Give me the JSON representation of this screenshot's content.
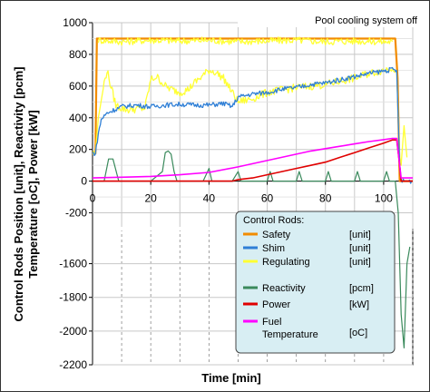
{
  "chart_data": {
    "type": "line",
    "annotation": "Pool cooling system off",
    "xlabel": "Time [min]",
    "ylabel_line1": "Control Rods Position [unit], Reactivity [pcm]",
    "ylabel_line2": "Temperature [oC], Power [kW]",
    "xlim": [
      0,
      110
    ],
    "x_ticks": [
      "0",
      "20",
      "40",
      "60",
      "80",
      "100"
    ],
    "y_ticks_upper": [
      "1000",
      "800",
      "600",
      "400",
      "200",
      "0",
      "-200"
    ],
    "y_ticks_lower": [
      "-1600",
      "-1800",
      "-2000",
      "-2200"
    ],
    "legend": {
      "group_title": "Control Rods:",
      "entries": [
        {
          "name": "Safety",
          "unit": "[unit]",
          "color": "#f28c00"
        },
        {
          "name": "Shim",
          "unit": "[unit]",
          "color": "#2f7fd6"
        },
        {
          "name": "Regulating",
          "unit": "[unit]",
          "color": "#ffff33"
        },
        {
          "name": "Reactivity",
          "unit": "[pcm]",
          "color": "#3a8a5c"
        },
        {
          "name": "Power",
          "unit": "[kW]",
          "color": "#e00000"
        },
        {
          "name": "Fuel",
          "name2": "Temperature",
          "unit": "[oC]",
          "color": "#ff00ff"
        }
      ]
    },
    "series": [
      {
        "name": "Safety",
        "color": "#f28c00",
        "x": [
          0,
          1,
          1.5,
          104,
          104.8,
          105.5,
          110
        ],
        "y": [
          175,
          175,
          900,
          900,
          650,
          0,
          0
        ]
      },
      {
        "name": "Shim",
        "color": "#2f7fd6",
        "x": [
          0,
          1,
          2,
          3,
          5,
          10,
          15,
          20,
          25,
          30,
          35,
          40,
          45,
          48,
          50,
          55,
          60,
          65,
          70,
          75,
          80,
          85,
          90,
          95,
          100,
          103,
          104.5,
          105.5,
          106,
          110
        ],
        "y": [
          175,
          175,
          300,
          390,
          430,
          470,
          480,
          470,
          480,
          485,
          480,
          480,
          490,
          470,
          530,
          550,
          560,
          580,
          590,
          610,
          620,
          640,
          660,
          680,
          695,
          705,
          700,
          100,
          0,
          0
        ]
      },
      {
        "name": "Regulating",
        "color": "#ffff33",
        "x": [
          0,
          1,
          2,
          4,
          5,
          6,
          8,
          10,
          12,
          18,
          20,
          22,
          25,
          27,
          30,
          33,
          35,
          40,
          42,
          45,
          48,
          50,
          55,
          60,
          70,
          80,
          90,
          95,
          100,
          103,
          104.5,
          105.5,
          106,
          107,
          108
        ],
        "y": [
          175,
          180,
          400,
          620,
          700,
          620,
          480,
          460,
          450,
          460,
          640,
          660,
          600,
          580,
          560,
          580,
          620,
          700,
          690,
          650,
          560,
          500,
          520,
          560,
          590,
          610,
          650,
          680,
          700,
          720,
          690,
          150,
          100,
          350,
          150
        ]
      },
      {
        "name": "Regulating upper",
        "color": "#ffff33",
        "x": [
          2,
          10,
          20,
          30,
          40,
          50,
          60,
          70,
          80,
          90,
          100,
          103
        ],
        "y": [
          890,
          880,
          890,
          885,
          890,
          880,
          885,
          890,
          880,
          885,
          880,
          880
        ]
      },
      {
        "name": "Reactivity",
        "color": "#3a8a5c",
        "x": [
          0,
          4,
          5.5,
          7,
          9,
          12,
          20,
          24,
          25,
          26,
          27,
          28,
          29,
          30,
          38,
          40,
          41,
          48,
          50,
          51,
          60,
          61,
          62,
          70,
          71,
          72,
          80,
          81,
          82,
          90,
          91,
          92,
          100,
          101,
          102,
          104,
          105,
          106,
          107,
          108,
          109
        ],
        "y": [
          0,
          0,
          140,
          140,
          0,
          0,
          0,
          60,
          180,
          190,
          170,
          60,
          0,
          0,
          0,
          80,
          0,
          0,
          60,
          0,
          0,
          60,
          0,
          0,
          60,
          0,
          0,
          60,
          0,
          0,
          60,
          0,
          0,
          60,
          0,
          0,
          -200,
          -1900,
          -2100,
          -1600,
          -1500
        ]
      },
      {
        "name": "Power",
        "color": "#e00000",
        "x": [
          0,
          48,
          50,
          55,
          60,
          65,
          70,
          75,
          80,
          85,
          90,
          95,
          100,
          103,
          104.5,
          105.2,
          106,
          110
        ],
        "y": [
          0,
          0,
          10,
          20,
          40,
          60,
          80,
          100,
          120,
          150,
          180,
          210,
          240,
          260,
          260,
          150,
          0,
          0
        ]
      },
      {
        "name": "Fuel Temperature",
        "color": "#ff00ff",
        "x": [
          0,
          10,
          20,
          30,
          40,
          50,
          55,
          60,
          65,
          70,
          75,
          80,
          85,
          90,
          95,
          100,
          103,
          104.5,
          105.5,
          106,
          110
        ],
        "y": [
          20,
          25,
          30,
          40,
          55,
          90,
          110,
          130,
          150,
          170,
          190,
          205,
          220,
          235,
          250,
          262,
          270,
          270,
          100,
          20,
          20
        ]
      }
    ]
  }
}
